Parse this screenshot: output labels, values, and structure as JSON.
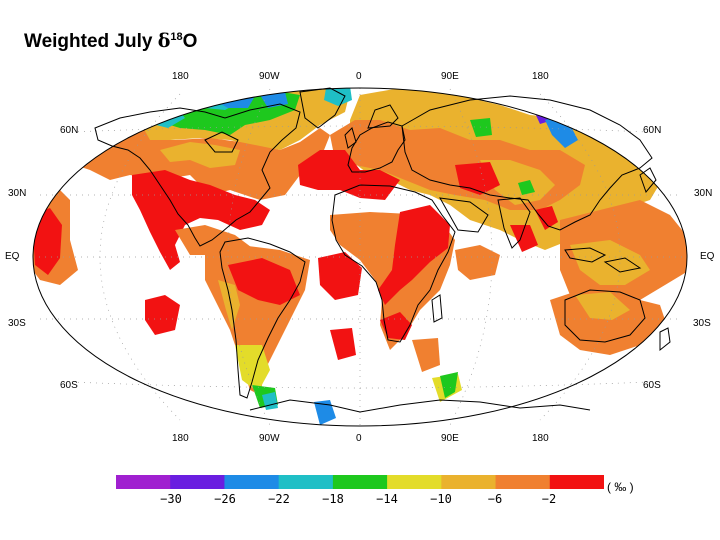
{
  "title": {
    "symbol": "δ",
    "superscript": "18",
    "prefix": "Weighted July ",
    "suffix": "O"
  },
  "top_lon_labels": [
    "180",
    "90W",
    "0",
    "90E",
    "180"
  ],
  "bottom_lon_labels": [
    "180",
    "90W",
    "0",
    "90E",
    "180"
  ],
  "left_lat_labels": [
    "60N",
    "30N",
    "EQ",
    "30S",
    "60S"
  ],
  "right_lat_labels": [
    "60N",
    "30N",
    "EQ",
    "30S",
    "60S"
  ],
  "legend": {
    "unit": "( ‰ )",
    "ticks": [
      "−30",
      "−26",
      "−22",
      "−18",
      "−14",
      "−10",
      "−6",
      "−2"
    ],
    "colors": [
      "#a020d0",
      "#6a1ee0",
      "#1e8be6",
      "#1fbfc6",
      "#1ec81e",
      "#e3dc2a",
      "#eab22e",
      "#f08030",
      "#f21212"
    ]
  },
  "colors": {
    "red": "#f21212",
    "orange": "#f08030",
    "amber": "#eab22e",
    "yellow": "#e3dc2a",
    "green": "#1ec81e",
    "cyan": "#1fbfc6",
    "blue": "#1e8be6",
    "violet": "#6a1ee0"
  }
}
